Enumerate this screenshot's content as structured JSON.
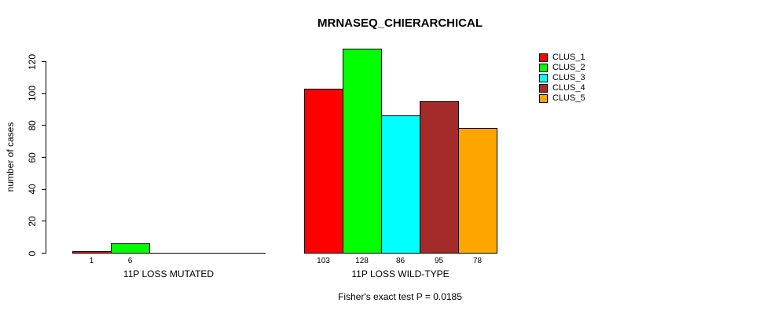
{
  "chart_data": {
    "type": "bar",
    "title": "MRNASEQ_CHIERARCHICAL",
    "ylabel": "number of cases",
    "xlabel": "",
    "yticks": [
      0,
      20,
      40,
      60,
      80,
      100,
      120
    ],
    "ylim": [
      0,
      128
    ],
    "grid": false,
    "legend_position": "top-right",
    "series": [
      {
        "name": "CLUS_1",
        "color": "#FF0000"
      },
      {
        "name": "CLUS_2",
        "color": "#00FF00"
      },
      {
        "name": "CLUS_3",
        "color": "#00FFFF"
      },
      {
        "name": "CLUS_4",
        "color": "#A52A2A"
      },
      {
        "name": "CLUS_5",
        "color": "#FFA500"
      }
    ],
    "groups": [
      {
        "label": "11P LOSS MUTATED",
        "values": [
          1,
          6,
          0,
          0,
          0
        ]
      },
      {
        "label": "11P LOSS WILD-TYPE",
        "values": [
          103,
          128,
          86,
          95,
          78
        ]
      }
    ],
    "annotation": "Fisher's exact test P = 0.0185"
  },
  "colors": {
    "background": "#FFFFFF",
    "axis": "#000000",
    "bar_border": "#000000",
    "text": "#000000"
  }
}
